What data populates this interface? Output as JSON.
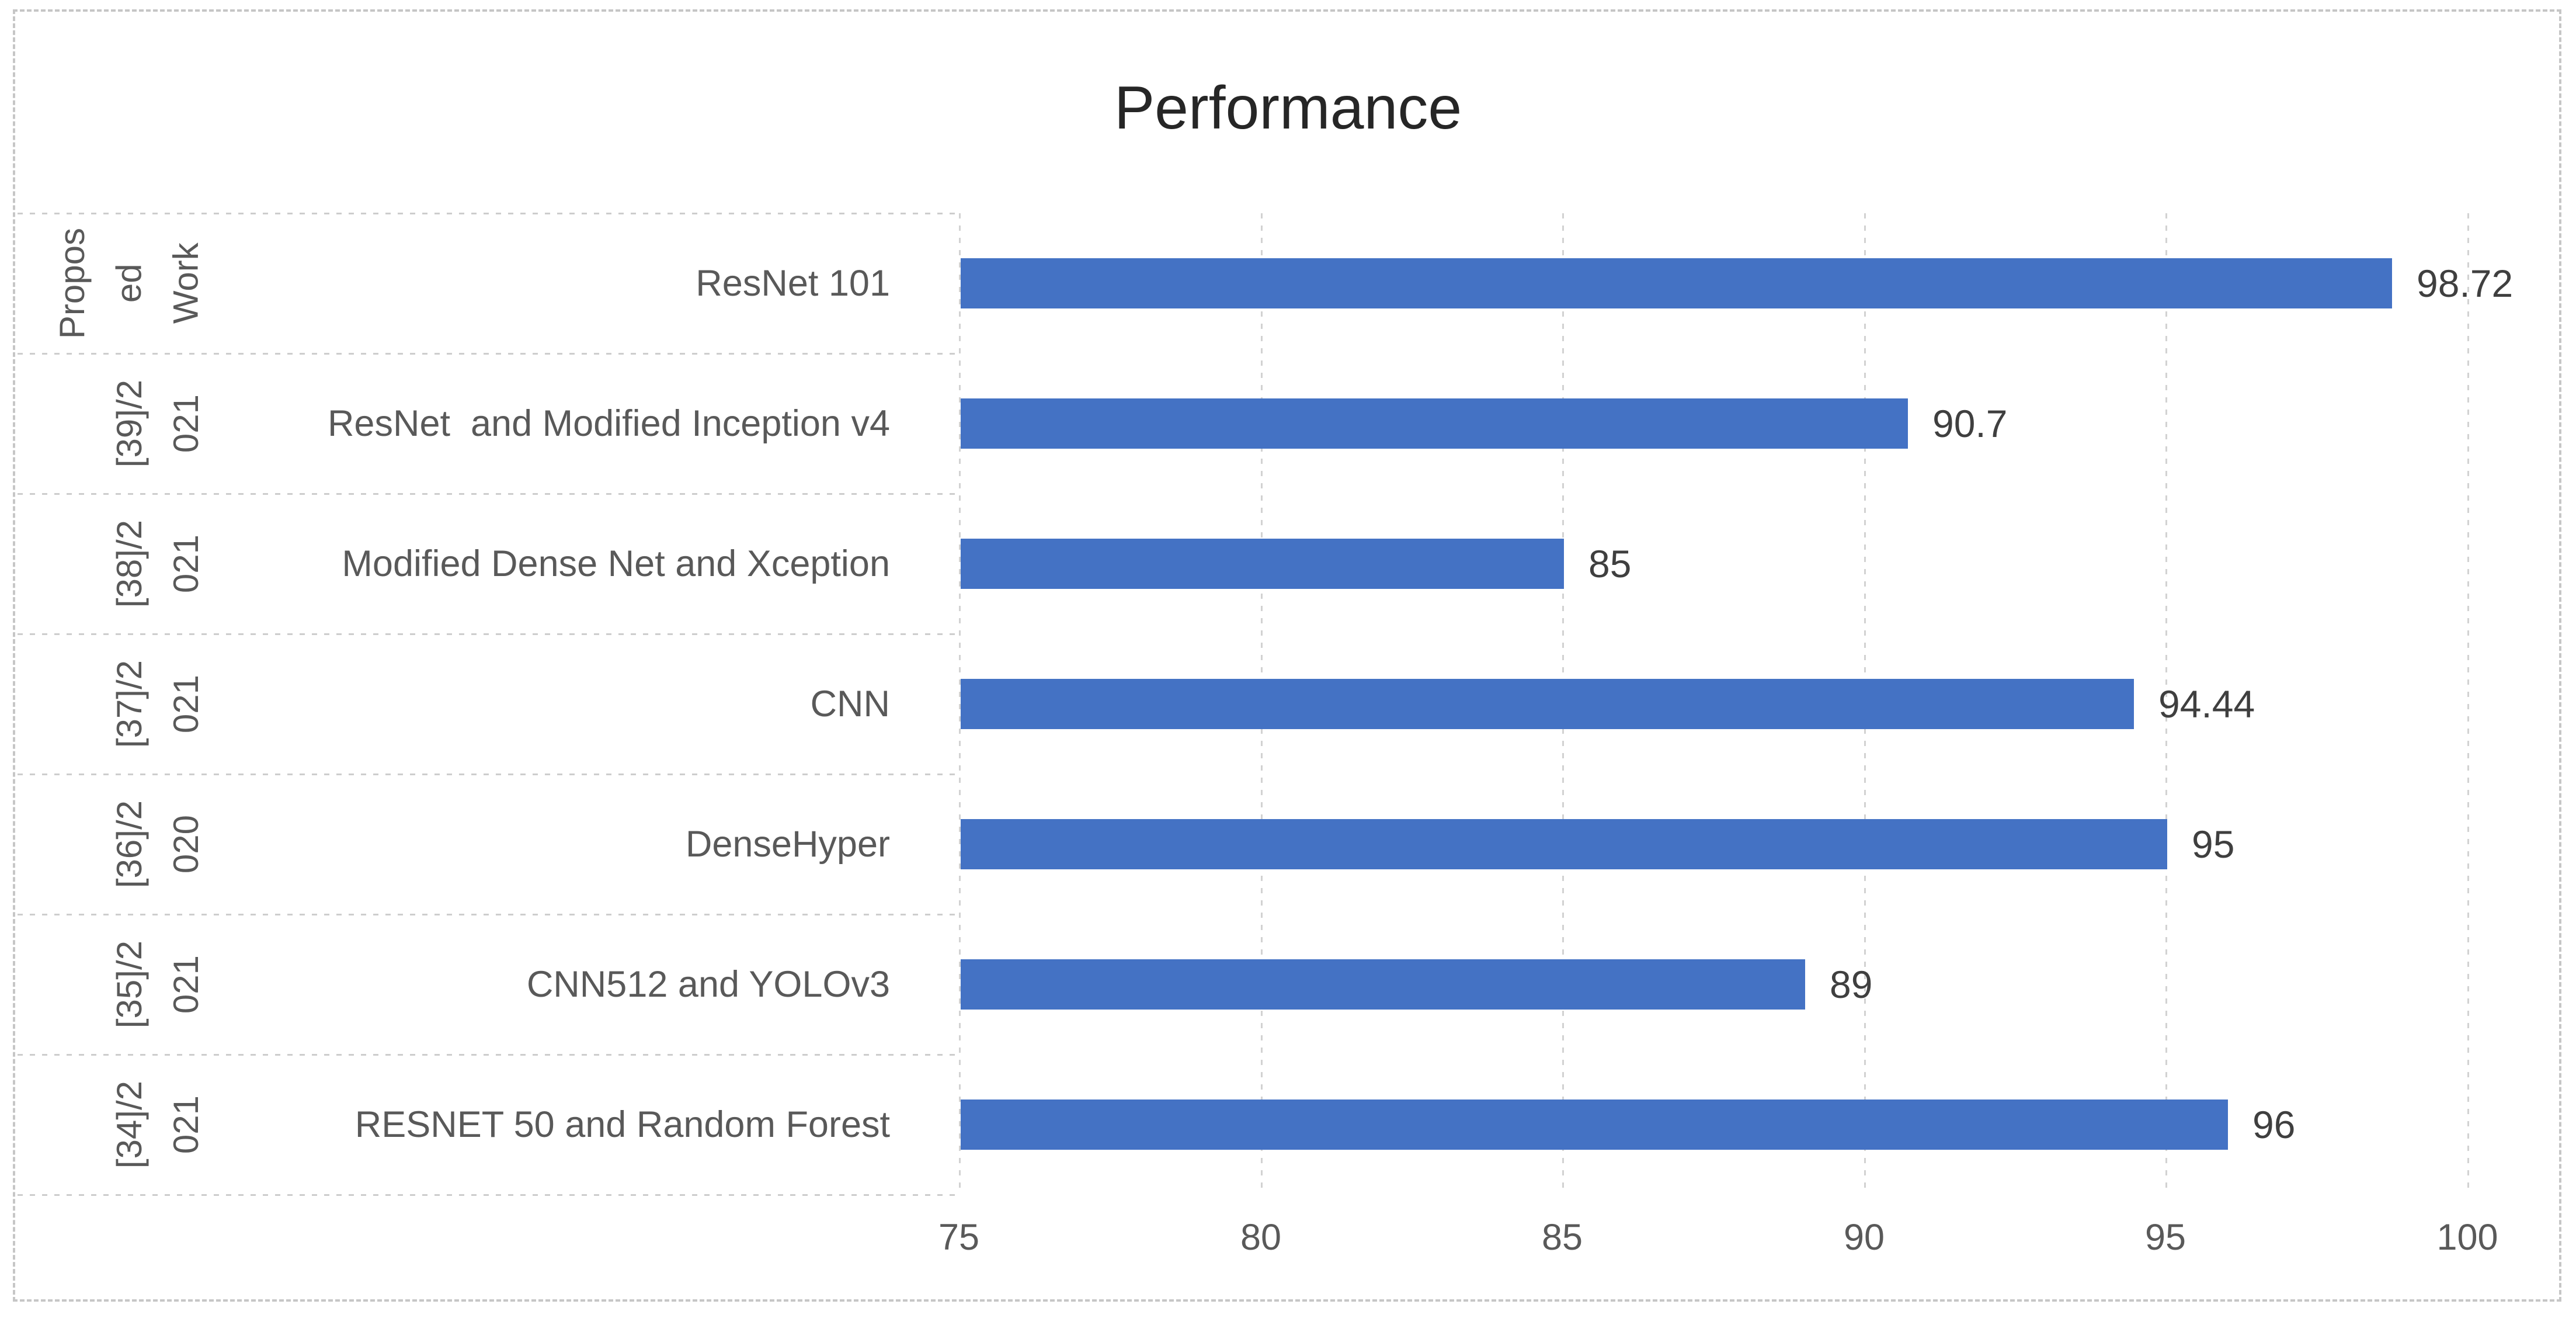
{
  "title": "Performance",
  "chart_data": {
    "type": "bar",
    "orientation": "horizontal",
    "title": "Performance",
    "bar_color": "#4472C4",
    "grid": "vertical dashed gridlines, no horizontal gridlines",
    "legend": "none",
    "xlabel": "",
    "ylabel": "",
    "xlim": [
      75,
      100
    ],
    "xticks": [
      "75",
      "80",
      "85",
      "90",
      "95",
      "100"
    ],
    "xtick_values": [
      75,
      80,
      85,
      90,
      95,
      100
    ],
    "group_labels": [
      "Proposed Work",
      "[39]/2021",
      "[38]/2021",
      "[37]/2021",
      "[36]/2020",
      "[35]/2021",
      "[34]/2021"
    ],
    "group_labels_wrapped": [
      "Propos\ned\nWork",
      "[39]/2\n021",
      "[38]/2\n021",
      "[37]/2\n021",
      "[36]/2\n020",
      "[35]/2\n021",
      "[34]/2\n021"
    ],
    "categories": [
      "ResNet 101",
      "ResNet  and Modified Inception v4",
      "Modified Dense Net and Xception",
      "CNN",
      "DenseHyper",
      "CNN512 and YOLOv3",
      "RESNET 50 and Random Forest"
    ],
    "values": [
      98.72,
      90.7,
      85,
      94.44,
      95,
      89,
      96
    ],
    "value_labels": [
      "98.72",
      "90.7",
      "85",
      "94.44",
      "95",
      "89",
      "96"
    ]
  },
  "colors": {
    "bar": "#4472C4",
    "axis_text": "#595959",
    "value_text": "#3f3f3f",
    "title_text": "#262626",
    "gridline": "#d2d2d2",
    "border": "#c6c6c6",
    "background": "#ffffff"
  }
}
